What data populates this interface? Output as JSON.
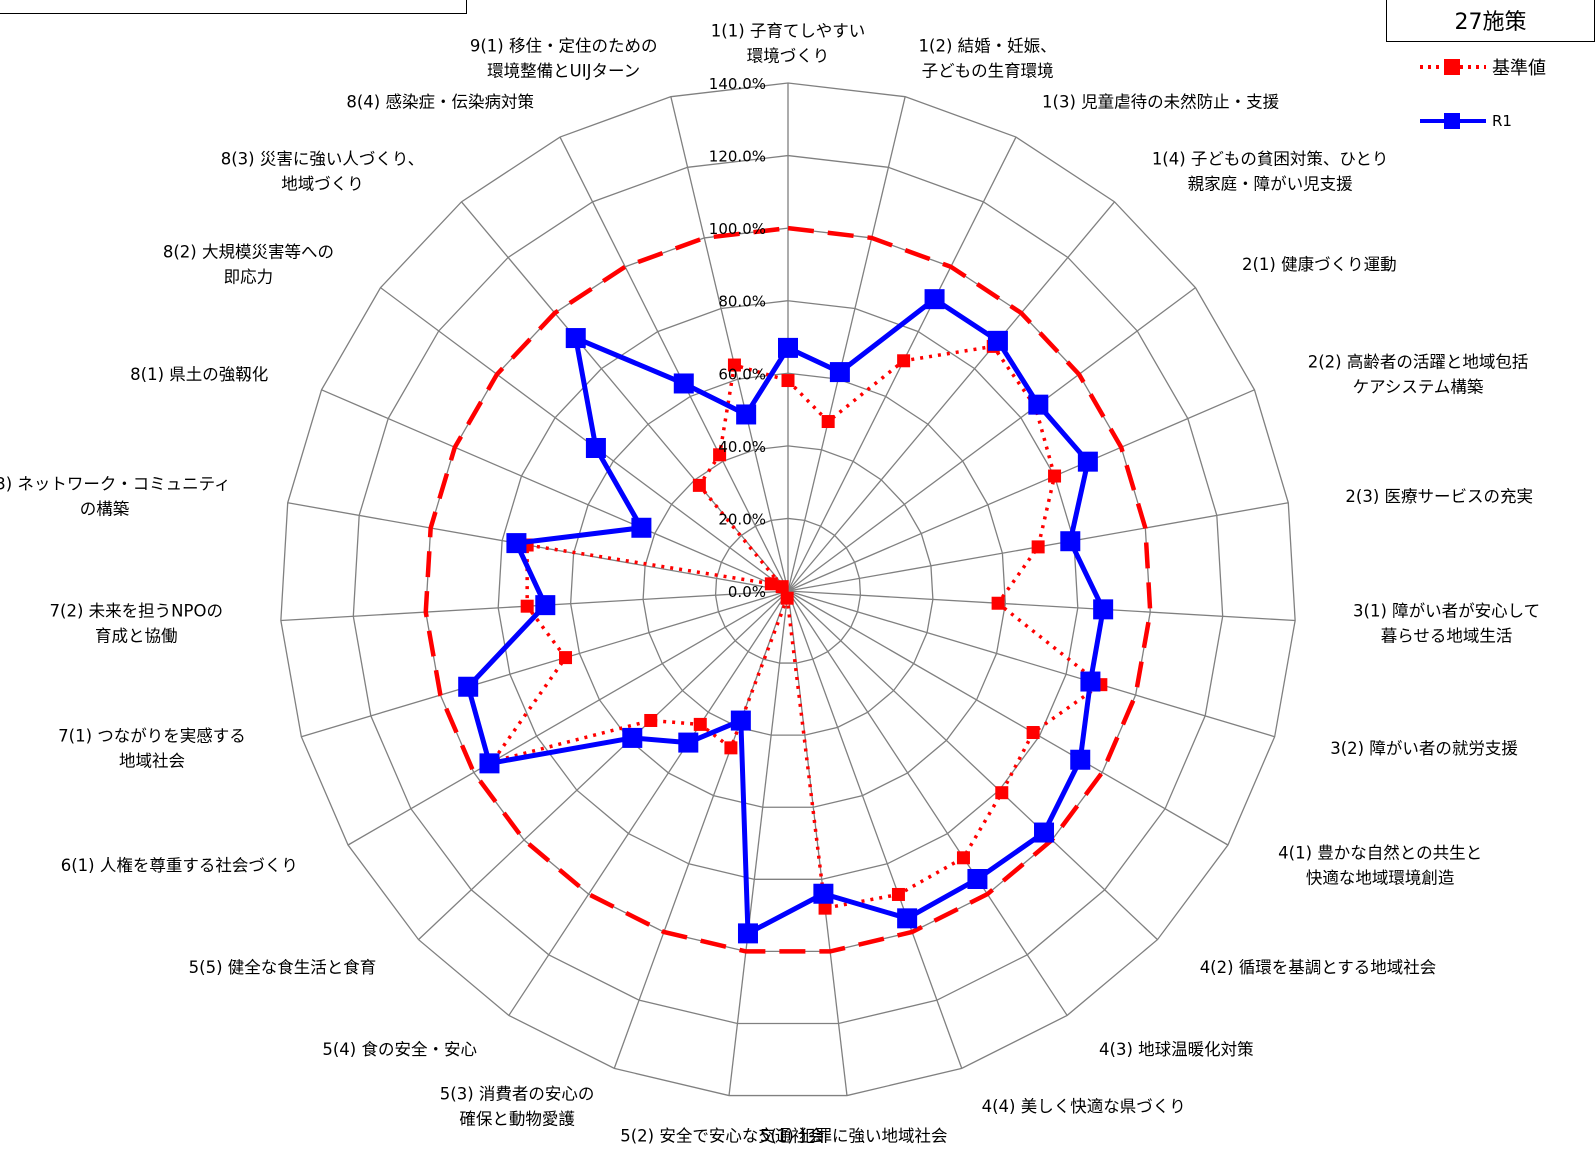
{
  "badge": "27施策",
  "legend": {
    "baseline": "基準値",
    "r1": "R1"
  },
  "colors": {
    "baseline": "#ff0000",
    "r1": "#0000ff",
    "grid": "#808080"
  },
  "chart_data": {
    "type": "radar",
    "r_range": [
      0,
      140
    ],
    "r_ticks": [
      "0.0%",
      "20.0%",
      "40.0%",
      "60.0%",
      "80.0%",
      "100.0%",
      "120.0%",
      "140.0%"
    ],
    "r_tick_values": [
      0,
      20,
      40,
      60,
      80,
      100,
      120,
      140
    ],
    "reference_ring": 100,
    "categories": [
      [
        "1(1) 子育てしやすい",
        "環境づくり"
      ],
      [
        "1(2) 結婚・妊娠、",
        "子どもの生育環境"
      ],
      [
        "1(3) 児童虐待の未然防止・支援"
      ],
      [
        "1(4) 子どもの貧困対策、ひとり",
        "親家庭・障がい児支援"
      ],
      [
        "2(1) 健康づくり運動"
      ],
      [
        "2(2) 高齢者の活躍と地域包括",
        "ケアシステム構築"
      ],
      [
        "2(3) 医療サービスの充実"
      ],
      [
        "3(1) 障がい者が安心して",
        "暮らせる地域生活"
      ],
      [
        "3(2) 障がい者の就労支援"
      ],
      [
        "4(1) 豊かな自然との共生と",
        "快適な地域環境創造"
      ],
      [
        "4(2) 循環を基調とする地域社会"
      ],
      [
        "4(3) 地球温暖化対策"
      ],
      [
        "4(4) 美しく快適な県づくり"
      ],
      [
        "5(1) 犯罪に強い地域社会"
      ],
      [
        "5(2) 安全で安心な交通社会"
      ],
      [
        "5(3) 消費者の安心の",
        "確保と動物愛護"
      ],
      [
        "5(4) 食の安全・安心"
      ],
      [
        "5(5) 健全な食生活と食育"
      ],
      [
        "6(1) 人権を尊重する社会づくり"
      ],
      [
        "7(1) つながりを実感する",
        "地域社会"
      ],
      [
        "7(2) 未来を担うNPOの",
        "育成と協働"
      ],
      [
        "7(3) ネットワーク・コミュニティ",
        "の構築"
      ],
      [
        "8(1) 県土の強靱化"
      ],
      [
        "8(2) 大規模災害等への",
        "即応力"
      ],
      [
        "8(3) 災害に強い人づくり、",
        "地域づくり"
      ],
      [
        "8(4) 感染症・伝染病対策"
      ],
      [
        "9(1) 移住・定住のための",
        "環境整備とUIJターン"
      ]
    ],
    "series": [
      {
        "name": "基準値",
        "values": [
          58,
          48,
          71,
          88,
          85,
          80,
          70,
          58,
          90,
          78,
          81,
          88,
          89,
          88,
          2,
          46,
          44,
          52,
          94,
          64,
          72,
          73,
          5,
          2,
          38,
          42,
          64
        ]
      },
      {
        "name": "R1",
        "values": [
          67,
          62,
          90,
          90,
          86,
          90,
          79,
          87,
          87,
          93,
          97,
          95,
          96,
          84,
          95,
          38,
          50,
          59,
          95,
          92,
          67,
          76,
          44,
          66,
          91,
          64,
          50
        ]
      }
    ]
  }
}
